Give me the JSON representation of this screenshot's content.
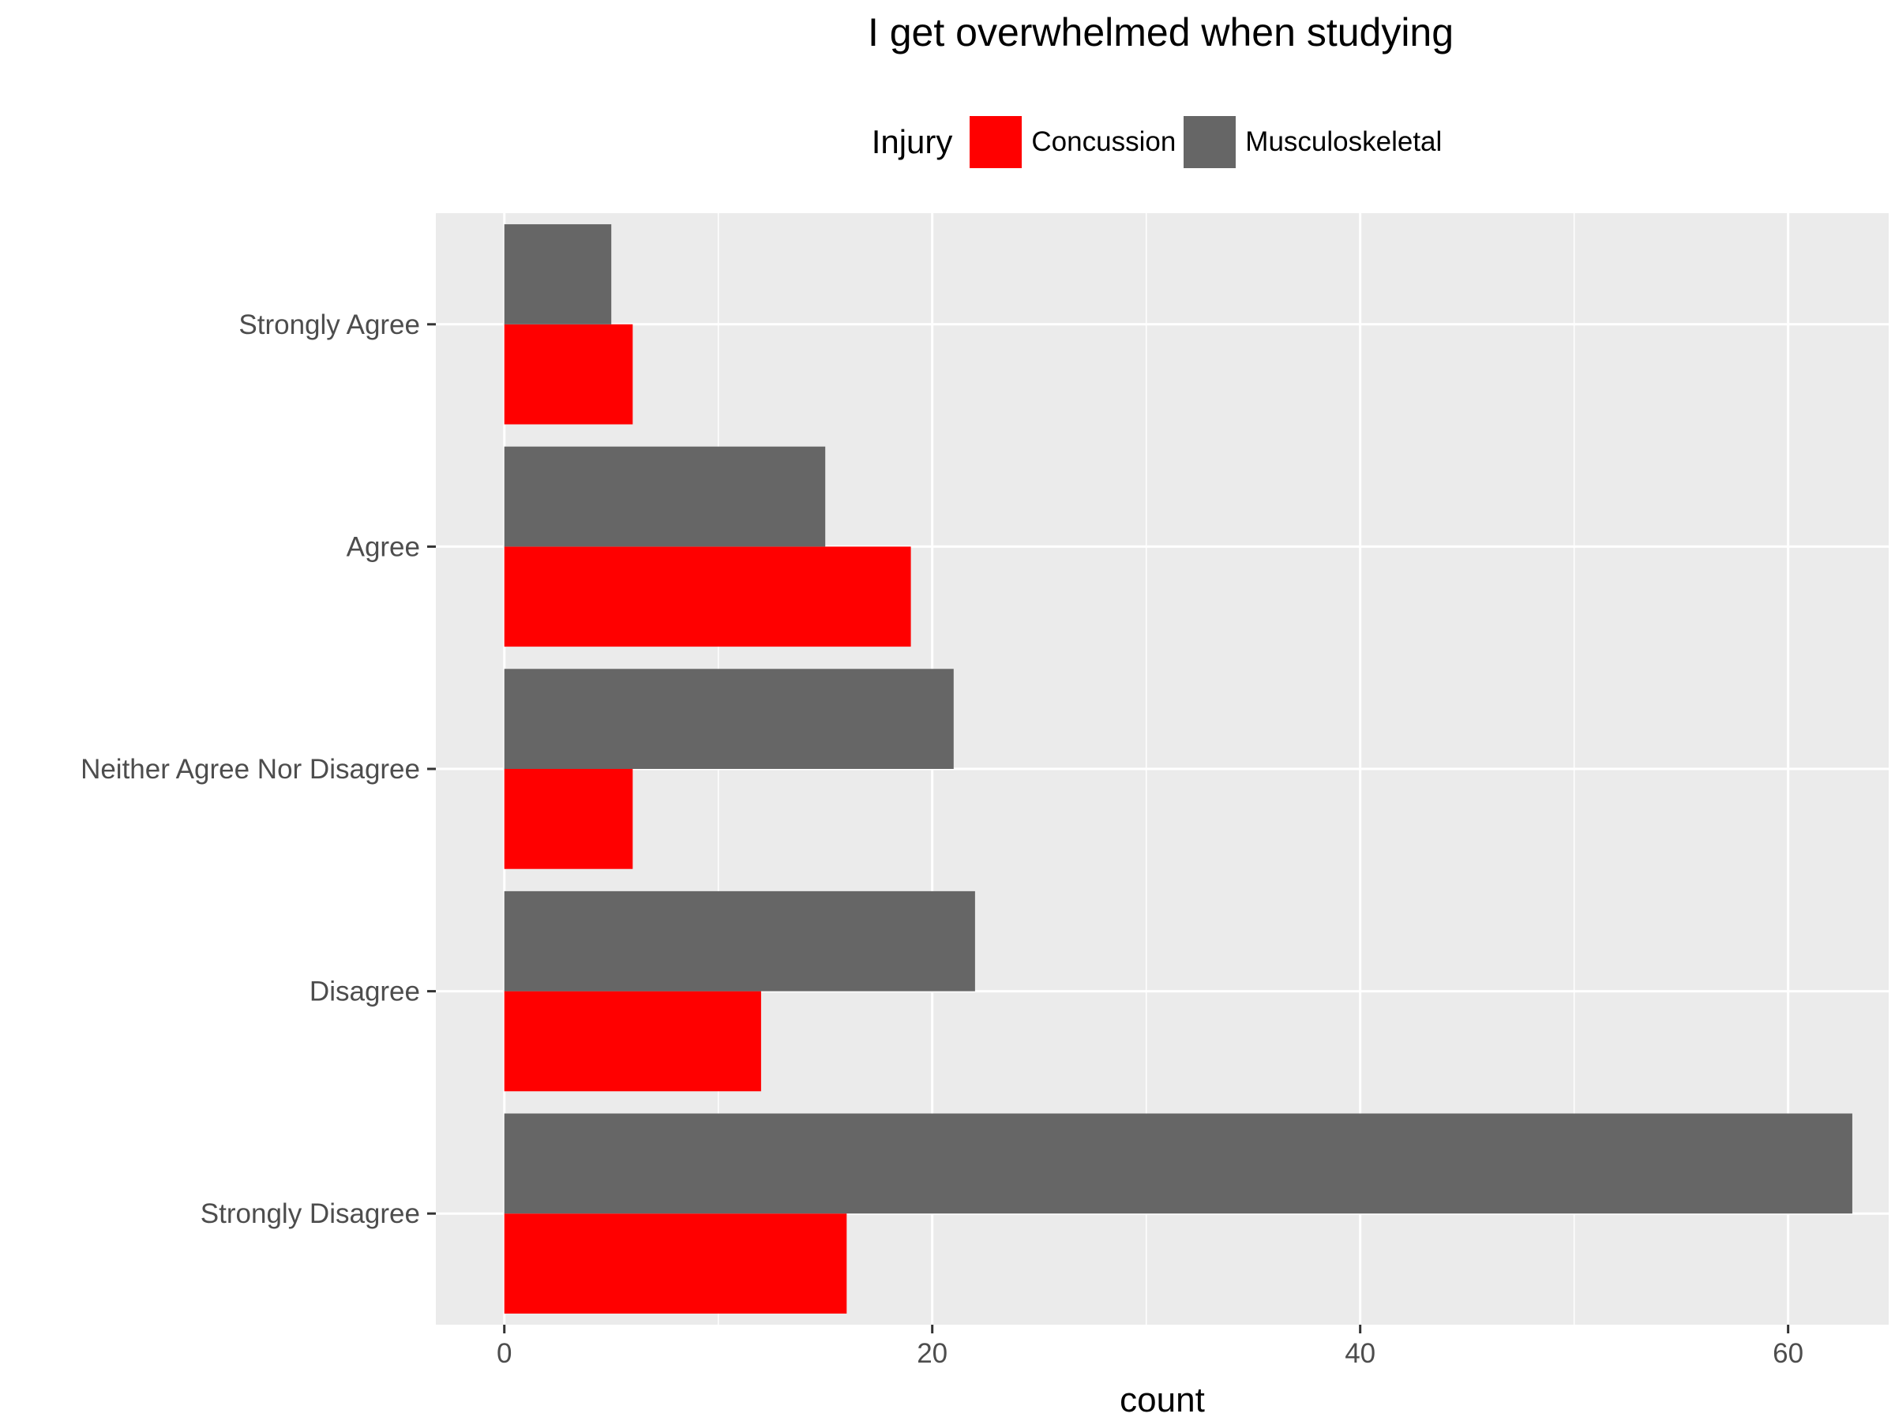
{
  "chart_data": {
    "type": "bar",
    "orientation": "horizontal",
    "title": "I get overwhelmed when studying",
    "xlabel": "count",
    "ylabel": "",
    "xlim": [
      -3.2,
      64.7
    ],
    "x_ticks": [
      0,
      20,
      40,
      60
    ],
    "categories": [
      "Strongly Agree",
      "Agree",
      "Neither Agree Nor Disagree",
      "Disagree",
      "Strongly Disagree"
    ],
    "legend": {
      "title": "Injury",
      "placement": "top"
    },
    "grid": true,
    "series": [
      {
        "name": "Concussion",
        "color": "#FF0000",
        "values": [
          6,
          19,
          6,
          12,
          16
        ]
      },
      {
        "name": "Musculoskeletal",
        "color": "#666666",
        "values": [
          5,
          15,
          21,
          22,
          63
        ]
      }
    ]
  }
}
